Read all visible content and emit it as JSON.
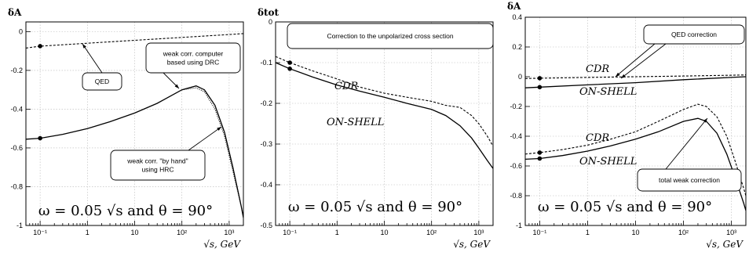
{
  "chart_data": [
    {
      "type": "line",
      "title": "",
      "ylabel": "δA",
      "xlabel": "√s, GeV",
      "xscale": "log",
      "xlim": [
        0.05,
        2000
      ],
      "ylim": [
        -1,
        0.05
      ],
      "xticks": [
        0.1,
        1,
        10,
        100,
        1000
      ],
      "xtick_labels": [
        "10⁻¹",
        "1",
        "10",
        "10²",
        "10³"
      ],
      "yticks": [
        0,
        -0.2,
        -0.4,
        -0.6,
        -0.8,
        -1
      ],
      "ytick_labels": [
        "0",
        "-0.2",
        "-0.4",
        "-0.6",
        "-0.8",
        "-1"
      ],
      "grid": true,
      "series": [
        {
          "style": "dashed",
          "x": [
            0.05,
            0.1,
            1,
            10,
            100,
            1000,
            2000
          ],
          "y": [
            -0.085,
            -0.075,
            -0.06,
            -0.045,
            -0.03,
            -0.015,
            -0.01
          ]
        },
        {
          "style": "solid",
          "x": [
            0.05,
            0.1,
            0.3,
            1,
            3,
            10,
            30,
            100,
            200,
            300,
            500,
            800,
            1200,
            1800,
            2000
          ],
          "y": [
            -0.555,
            -0.55,
            -0.53,
            -0.5,
            -0.465,
            -0.42,
            -0.37,
            -0.3,
            -0.28,
            -0.3,
            -0.38,
            -0.52,
            -0.7,
            -0.9,
            -0.96
          ]
        },
        {
          "style": "dotted",
          "x": [
            100,
            200,
            300,
            500,
            800,
            1200,
            1800,
            2000
          ],
          "y": [
            -0.3,
            -0.29,
            -0.31,
            -0.4,
            -0.54,
            -0.72,
            -0.9,
            -0.95
          ]
        }
      ],
      "markers": [
        {
          "x": 0.1,
          "y": -0.075
        },
        {
          "x": 0.1,
          "y": -0.55
        }
      ],
      "annotations": [
        {
          "text": [
            "QED"
          ]
        },
        {
          "text": [
            "weak corr. computer",
            "based using DRC"
          ]
        },
        {
          "text": [
            "weak corr. \"by hand\"",
            "using HRC"
          ]
        }
      ],
      "formula": "ω = 0.05 √s and θ = 90°"
    },
    {
      "type": "line",
      "title": "",
      "ylabel": "δtot",
      "xlabel": "√s, GeV",
      "xscale": "log",
      "xlim": [
        0.05,
        2000
      ],
      "ylim": [
        -0.5,
        0
      ],
      "xticks": [
        0.1,
        1,
        10,
        100,
        1000
      ],
      "xtick_labels": [
        "10⁻¹",
        "1",
        "10",
        "10²",
        "10³"
      ],
      "yticks": [
        0,
        -0.1,
        -0.2,
        -0.3,
        -0.4,
        -0.5
      ],
      "ytick_labels": [
        "0",
        "-0.1",
        "-0.2",
        "-0.3",
        "-0.4",
        "-0.5"
      ],
      "grid": true,
      "series": [
        {
          "name": "CDR",
          "style": "dashed",
          "x": [
            0.05,
            0.1,
            0.3,
            1,
            3,
            10,
            30,
            100,
            200,
            400,
            700,
            1000,
            1500,
            2000
          ],
          "y": [
            -0.085,
            -0.1,
            -0.12,
            -0.14,
            -0.16,
            -0.175,
            -0.185,
            -0.195,
            -0.205,
            -0.21,
            -0.23,
            -0.25,
            -0.28,
            -0.305
          ]
        },
        {
          "name": "ON-SHELL",
          "style": "solid",
          "x": [
            0.05,
            0.1,
            0.3,
            1,
            3,
            10,
            30,
            100,
            200,
            400,
            700,
            1000,
            1500,
            2000
          ],
          "y": [
            -0.1,
            -0.115,
            -0.135,
            -0.155,
            -0.17,
            -0.185,
            -0.2,
            -0.215,
            -0.23,
            -0.255,
            -0.285,
            -0.31,
            -0.34,
            -0.36
          ]
        }
      ],
      "markers": [
        {
          "x": 0.1,
          "y": -0.1
        },
        {
          "x": 0.1,
          "y": -0.115
        }
      ],
      "annotations": [
        {
          "text": [
            "Correction to the unpolarized cross section"
          ]
        }
      ],
      "formula": "ω = 0.05 √s and θ = 90°"
    },
    {
      "type": "line",
      "title": "",
      "ylabel": "δA",
      "xlabel": "√s, GeV",
      "xscale": "log",
      "xlim": [
        0.05,
        2000
      ],
      "ylim": [
        -1,
        0.4
      ],
      "xticks": [
        0.1,
        1,
        10,
        100,
        1000
      ],
      "xtick_labels": [
        "10⁻¹",
        "1",
        "10",
        "10²",
        "10³"
      ],
      "yticks": [
        0.4,
        0.2,
        0,
        -0.2,
        -0.4,
        -0.6,
        -0.8,
        -1
      ],
      "ytick_labels": [
        "0.4",
        "0.2",
        "0",
        "-0.2",
        "-0.4",
        "-0.6",
        "-0.8",
        "-1"
      ],
      "grid": true,
      "series": [
        {
          "name": "CDR",
          "style": "dashed",
          "x": [
            0.05,
            0.1,
            1,
            10,
            100,
            1000,
            2000
          ],
          "y": [
            -0.012,
            -0.01,
            -0.005,
            0,
            0.005,
            0.01,
            0.012
          ]
        },
        {
          "name": "ON-SHELL",
          "style": "solid",
          "x": [
            0.05,
            0.1,
            1,
            10,
            100,
            1000,
            2000
          ],
          "y": [
            -0.075,
            -0.07,
            -0.055,
            -0.04,
            -0.02,
            -0.005,
            0.0
          ]
        },
        {
          "name": "CDR",
          "style": "dashed",
          "x": [
            0.05,
            0.1,
            0.3,
            1,
            3,
            10,
            30,
            100,
            200,
            300,
            500,
            800,
            1200,
            1800,
            2000
          ],
          "y": [
            -0.52,
            -0.51,
            -0.49,
            -0.46,
            -0.42,
            -0.37,
            -0.3,
            -0.22,
            -0.185,
            -0.2,
            -0.27,
            -0.4,
            -0.57,
            -0.75,
            -0.8
          ]
        },
        {
          "name": "ON-SHELL",
          "style": "solid",
          "x": [
            0.05,
            0.1,
            0.3,
            1,
            3,
            10,
            30,
            100,
            200,
            300,
            500,
            800,
            1200,
            1800,
            2000
          ],
          "y": [
            -0.555,
            -0.55,
            -0.53,
            -0.5,
            -0.465,
            -0.42,
            -0.37,
            -0.3,
            -0.28,
            -0.3,
            -0.38,
            -0.52,
            -0.68,
            -0.85,
            -0.9
          ]
        }
      ],
      "markers": [
        {
          "x": 0.1,
          "y": -0.01
        },
        {
          "x": 0.1,
          "y": -0.07
        },
        {
          "x": 0.1,
          "y": -0.51
        },
        {
          "x": 0.1,
          "y": -0.55
        }
      ],
      "annotations": [
        {
          "text": [
            "QED correction"
          ]
        },
        {
          "text": [
            "total weak correction"
          ]
        }
      ],
      "formula": "ω = 0.05 √s and θ = 90°"
    }
  ]
}
